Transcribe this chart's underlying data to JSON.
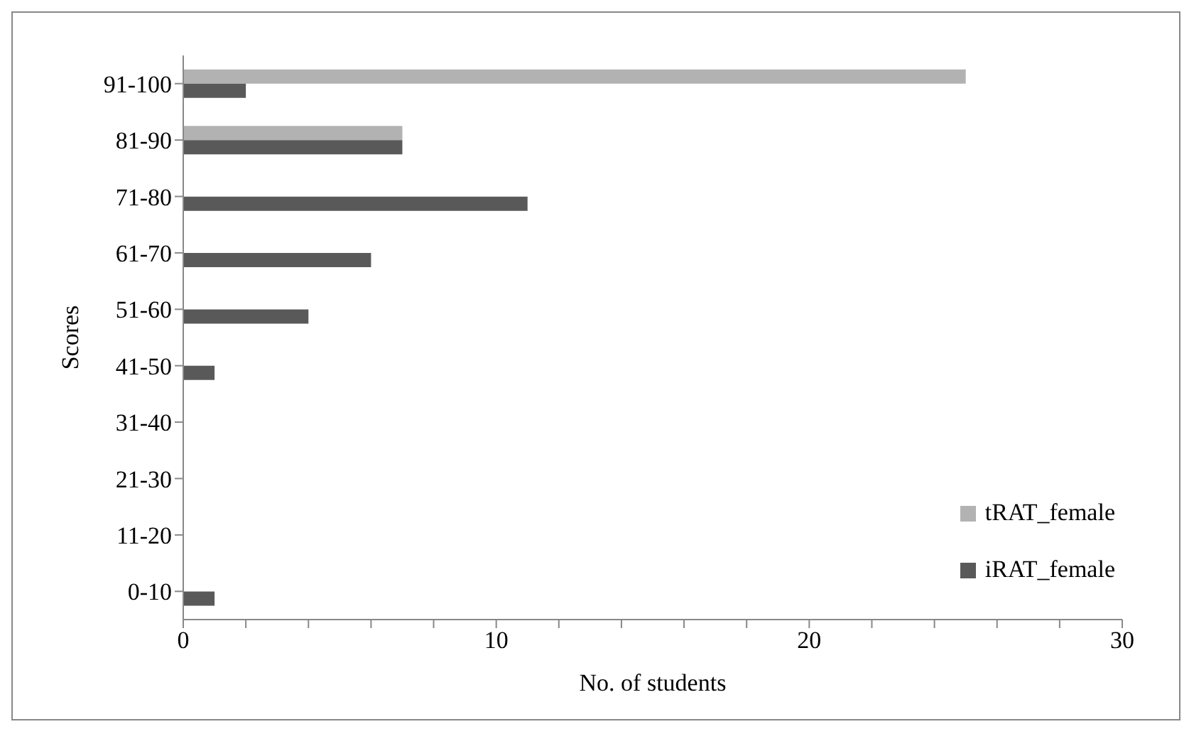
{
  "chart_data": {
    "type": "bar",
    "orientation": "horizontal",
    "xlabel": "No. of students",
    "ylabel": "Scores",
    "categories": [
      "91-100",
      "81-90",
      "71-80",
      "61-70",
      "51-60",
      "41-50",
      "31-40",
      "21-30",
      "11-20",
      "0-10"
    ],
    "series": [
      {
        "name": "tRAT_female",
        "color": "#b2b2b2",
        "values": [
          25,
          7,
          null,
          null,
          null,
          null,
          null,
          null,
          null,
          null
        ]
      },
      {
        "name": "iRAT_female",
        "color": "#595959",
        "values": [
          2,
          7,
          11,
          6,
          4,
          1,
          null,
          null,
          null,
          1
        ]
      }
    ],
    "xlim": [
      0,
      30
    ],
    "xticks": [
      0,
      {
        "value": 2,
        "label": null
      },
      {
        "value": 4,
        "label": null
      },
      {
        "value": 6,
        "label": null
      },
      {
        "value": 8,
        "label": null
      },
      10,
      {
        "value": 12,
        "label": null
      },
      {
        "value": 14,
        "label": null
      },
      {
        "value": 16,
        "label": null
      },
      {
        "value": 18,
        "label": null
      },
      20,
      {
        "value": 22,
        "label": null
      },
      {
        "value": 24,
        "label": null
      },
      {
        "value": 26,
        "label": null
      },
      {
        "value": 28,
        "label": null
      },
      30
    ],
    "grid": false,
    "legend": "bottom right"
  }
}
